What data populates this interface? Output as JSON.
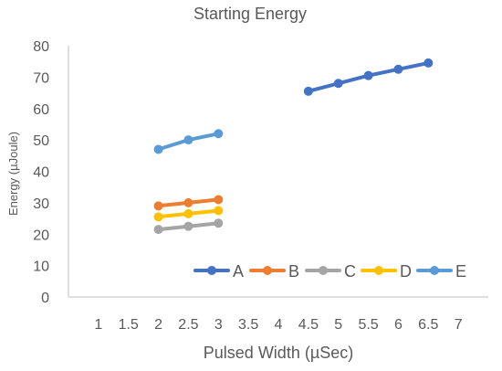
{
  "chart_data": {
    "type": "line",
    "title": "Starting Energy",
    "xlabel": "Pulsed Width (µSec)",
    "ylabel": "Energy (µJoule)",
    "xlim": [
      0.5,
      7.5
    ],
    "ylim": [
      0,
      80
    ],
    "xticks": [
      "1",
      "1.5",
      "2",
      "2.5",
      "3",
      "3.5",
      "4",
      "4.5",
      "5",
      "5.5",
      "6",
      "6.5",
      "7"
    ],
    "yticks": [
      "0",
      "10",
      "20",
      "30",
      "40",
      "50",
      "60",
      "70",
      "80"
    ],
    "grid": false,
    "legend_position": "bottom-right",
    "series": [
      {
        "name": "A",
        "color": "#4472C4",
        "x": [
          4.5,
          5,
          5.5,
          6,
          6.5
        ],
        "y": [
          65.5,
          68,
          70.5,
          72.5,
          74.5
        ]
      },
      {
        "name": "B",
        "color": "#ED7D31",
        "x": [
          2,
          2.5,
          3
        ],
        "y": [
          29,
          30,
          31
        ]
      },
      {
        "name": "C",
        "color": "#A5A5A5",
        "x": [
          2,
          2.5,
          3
        ],
        "y": [
          21.5,
          22.5,
          23.5
        ]
      },
      {
        "name": "D",
        "color": "#FFC000",
        "x": [
          2,
          2.5,
          3
        ],
        "y": [
          25.5,
          26.5,
          27.5
        ]
      },
      {
        "name": "E",
        "color": "#5B9BD5",
        "x": [
          2,
          2.5,
          3
        ],
        "y": [
          47,
          50,
          52
        ]
      }
    ]
  }
}
